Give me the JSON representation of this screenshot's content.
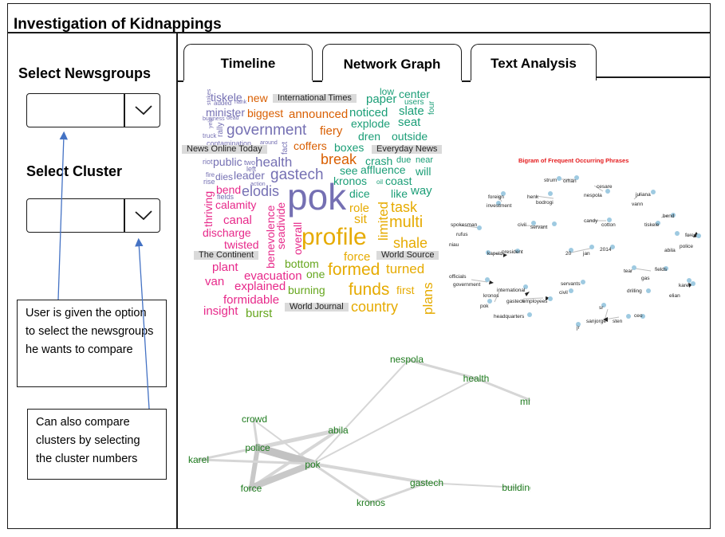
{
  "app": {
    "title": "Investigation of Kidnappings"
  },
  "sidebar": {
    "newsgroups_label": "Select Newsgroups",
    "newsgroups_value": "",
    "cluster_label": "Select Cluster",
    "cluster_value": ""
  },
  "tabs": [
    {
      "label": "Timeline",
      "active": false
    },
    {
      "label": "Network Graph",
      "active": false
    },
    {
      "label": "Text Analysis",
      "active": true
    }
  ],
  "annotations": {
    "newsgroups_note": "User is given the option to select the newsgroups he wants to compare",
    "cluster_note": "Can also compare clusters by selecting the cluster numbers"
  },
  "wordcloud": {
    "colors": {
      "blue": "#7570b3",
      "orange": "#d95f02",
      "teal": "#1b9e77",
      "pink": "#e7298a",
      "green": "#66a61e",
      "gold": "#e6ab02"
    },
    "words": [
      {
        "t": "tiskele",
        "c": "blue"
      },
      {
        "t": "new",
        "c": "orange"
      },
      {
        "t": "minister",
        "c": "blue"
      },
      {
        "t": "biggest",
        "c": "orange"
      },
      {
        "t": "announced",
        "c": "orange"
      },
      {
        "t": "government",
        "c": "blue"
      },
      {
        "t": "fiery",
        "c": "orange"
      },
      {
        "t": "coffers",
        "c": "orange"
      },
      {
        "t": "public",
        "c": "blue"
      },
      {
        "t": "health",
        "c": "blue"
      },
      {
        "t": "leader",
        "c": "blue"
      },
      {
        "t": "gastech",
        "c": "blue"
      },
      {
        "t": "dies",
        "c": "blue"
      },
      {
        "t": "elodis",
        "c": "blue"
      },
      {
        "t": "bend",
        "c": "pink"
      },
      {
        "t": "calamity",
        "c": "pink"
      },
      {
        "t": "canal",
        "c": "pink"
      },
      {
        "t": "discharge",
        "c": "pink"
      },
      {
        "t": "twisted",
        "c": "pink"
      },
      {
        "t": "thriving",
        "c": "pink"
      },
      {
        "t": "benevolence",
        "c": "pink"
      },
      {
        "t": "seadivide",
        "c": "pink"
      },
      {
        "t": "overall",
        "c": "pink"
      },
      {
        "t": "pok",
        "c": "blue"
      },
      {
        "t": "profile",
        "c": "gold"
      },
      {
        "t": "plant",
        "c": "pink"
      },
      {
        "t": "van",
        "c": "pink"
      },
      {
        "t": "explained",
        "c": "pink"
      },
      {
        "t": "evacuation",
        "c": "pink"
      },
      {
        "t": "formidable",
        "c": "pink"
      },
      {
        "t": "insight",
        "c": "pink"
      },
      {
        "t": "burst",
        "c": "green"
      },
      {
        "t": "bottom",
        "c": "green"
      },
      {
        "t": "one",
        "c": "green"
      },
      {
        "t": "burning",
        "c": "green"
      },
      {
        "t": "formed",
        "c": "gold"
      },
      {
        "t": "funds",
        "c": "gold"
      },
      {
        "t": "country",
        "c": "gold"
      },
      {
        "t": "turned",
        "c": "gold"
      },
      {
        "t": "force",
        "c": "gold"
      },
      {
        "t": "shale",
        "c": "gold"
      },
      {
        "t": "multi",
        "c": "gold"
      },
      {
        "t": "task",
        "c": "gold"
      },
      {
        "t": "role",
        "c": "gold"
      },
      {
        "t": "sit",
        "c": "gold"
      },
      {
        "t": "limited",
        "c": "gold"
      },
      {
        "t": "dice",
        "c": "teal"
      },
      {
        "t": "like",
        "c": "teal"
      },
      {
        "t": "way",
        "c": "teal"
      },
      {
        "t": "kronos",
        "c": "teal"
      },
      {
        "t": "see",
        "c": "teal"
      },
      {
        "t": "affluence",
        "c": "teal"
      },
      {
        "t": "will",
        "c": "teal"
      },
      {
        "t": "crash",
        "c": "teal"
      },
      {
        "t": "due",
        "c": "teal"
      },
      {
        "t": "near",
        "c": "teal"
      },
      {
        "t": "break",
        "c": "orange"
      },
      {
        "t": "boxes",
        "c": "teal"
      },
      {
        "t": "explode",
        "c": "teal"
      },
      {
        "t": "dren",
        "c": "teal"
      },
      {
        "t": "outside",
        "c": "teal"
      },
      {
        "t": "noticed",
        "c": "teal"
      },
      {
        "t": "slate",
        "c": "teal"
      },
      {
        "t": "seat",
        "c": "teal"
      },
      {
        "t": "paper",
        "c": "teal"
      },
      {
        "t": "center",
        "c": "teal"
      },
      {
        "t": "low",
        "c": "teal"
      },
      {
        "t": "users",
        "c": "teal"
      },
      {
        "t": "four",
        "c": "teal"
      },
      {
        "t": "coast",
        "c": "teal"
      },
      {
        "t": "first",
        "c": "gold"
      },
      {
        "t": "plans",
        "c": "gold"
      },
      {
        "t": "added",
        "c": "blue"
      },
      {
        "t": "hank",
        "c": "blue"
      },
      {
        "t": "business",
        "c": "blue"
      },
      {
        "t": "dead",
        "c": "blue"
      },
      {
        "t": "rally",
        "c": "blue"
      },
      {
        "t": "truck",
        "c": "blue"
      },
      {
        "t": "yelp",
        "c": "blue"
      },
      {
        "t": "contamination",
        "c": "blue"
      },
      {
        "t": "around",
        "c": "blue"
      },
      {
        "t": "fact",
        "c": "blue"
      },
      {
        "t": "riot",
        "c": "blue"
      },
      {
        "t": "two",
        "c": "blue"
      },
      {
        "t": "left",
        "c": "blue"
      },
      {
        "t": "fire",
        "c": "blue"
      },
      {
        "t": "rise",
        "c": "blue"
      },
      {
        "t": "action",
        "c": "blue"
      },
      {
        "t": "fields",
        "c": "blue"
      },
      {
        "t": "oil",
        "c": "teal"
      },
      {
        "t": "stokes",
        "c": "blue"
      }
    ],
    "sources": [
      "International Times",
      "News Online Today",
      "Everyday News",
      "The Continent",
      "World Source",
      "World Journal"
    ]
  },
  "bigram": {
    "title": "Bigram of Frequent Occurring Phrases",
    "node_color": "#9ecae1",
    "labels": [
      "strum",
      "orhan",
      "foreign",
      "henk",
      "bodrogi",
      "nespola",
      "cesare",
      "juliana",
      "vann",
      "investment",
      "spokesman",
      "civil",
      "servant",
      "candy",
      "cotton",
      "bend",
      "tiskele",
      "rufus",
      "niau",
      "force",
      "police",
      "kapelo",
      "president",
      "20",
      "jan",
      "2014",
      "abila",
      "officials",
      "government",
      "tear",
      "fields",
      "gas",
      "international",
      "servants",
      "kronos",
      "civil",
      "drilling",
      "karel",
      "elian",
      "pok",
      "gastech",
      "employees",
      "headquarters",
      "sr",
      "sanjorge",
      "jr",
      "sten",
      "ceo"
    ]
  },
  "network": {
    "text_color": "#1e7b1e",
    "nodes": [
      "nespola",
      "health",
      "minister",
      "crowd",
      "abila",
      "police",
      "karel",
      "pok",
      "force",
      "gastech",
      "building",
      "kronos"
    ]
  }
}
